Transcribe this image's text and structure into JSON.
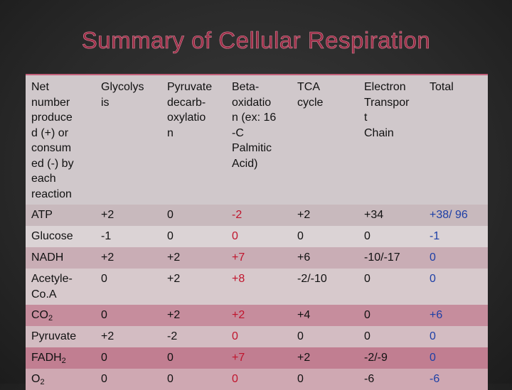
{
  "title": "Summary of Cellular Respiration",
  "table": {
    "header": [
      "Net\nnumber\nproduce\nd (+) or\nconsum\ned (-) by\neach\nreaction",
      "Glycolys\nis",
      "Pyruvate\ndecarb-\noxylatio\nn",
      "Beta-\noxidatio\nn (ex: 16\n-C\nPalmitic\nAcid)",
      "TCA\ncycle",
      "Electron\nTranspor\nt\nChain",
      "Total"
    ],
    "rows": [
      [
        "ATP",
        "+2",
        "0",
        "-2",
        "+2",
        "+34",
        "+38/ 96"
      ],
      [
        "Glucose",
        "-1",
        "0",
        "0",
        "0",
        "0",
        "-1"
      ],
      [
        "NADH",
        "+2",
        "+2",
        "+7",
        "+6",
        "-10/-17",
        "0"
      ],
      [
        "Acetyle-\nCo.A",
        "0",
        "+2",
        "+8",
        "-2/-10",
        "0",
        "0"
      ],
      [
        {
          "text": "CO",
          "sub": "2"
        },
        "0",
        "+2",
        "+2",
        "+4",
        "0",
        "+6"
      ],
      [
        "Pyruvate",
        "+2",
        "-2",
        "0",
        "0",
        "0",
        "0"
      ],
      [
        {
          "text": "FADH",
          "sub": "2"
        },
        "0",
        "0",
        "+7",
        "+2",
        "-2/-9",
        "0"
      ],
      [
        {
          "text": "O",
          "sub": "2"
        },
        "0",
        "0",
        "0",
        "0",
        "-6",
        "-6"
      ]
    ]
  }
}
